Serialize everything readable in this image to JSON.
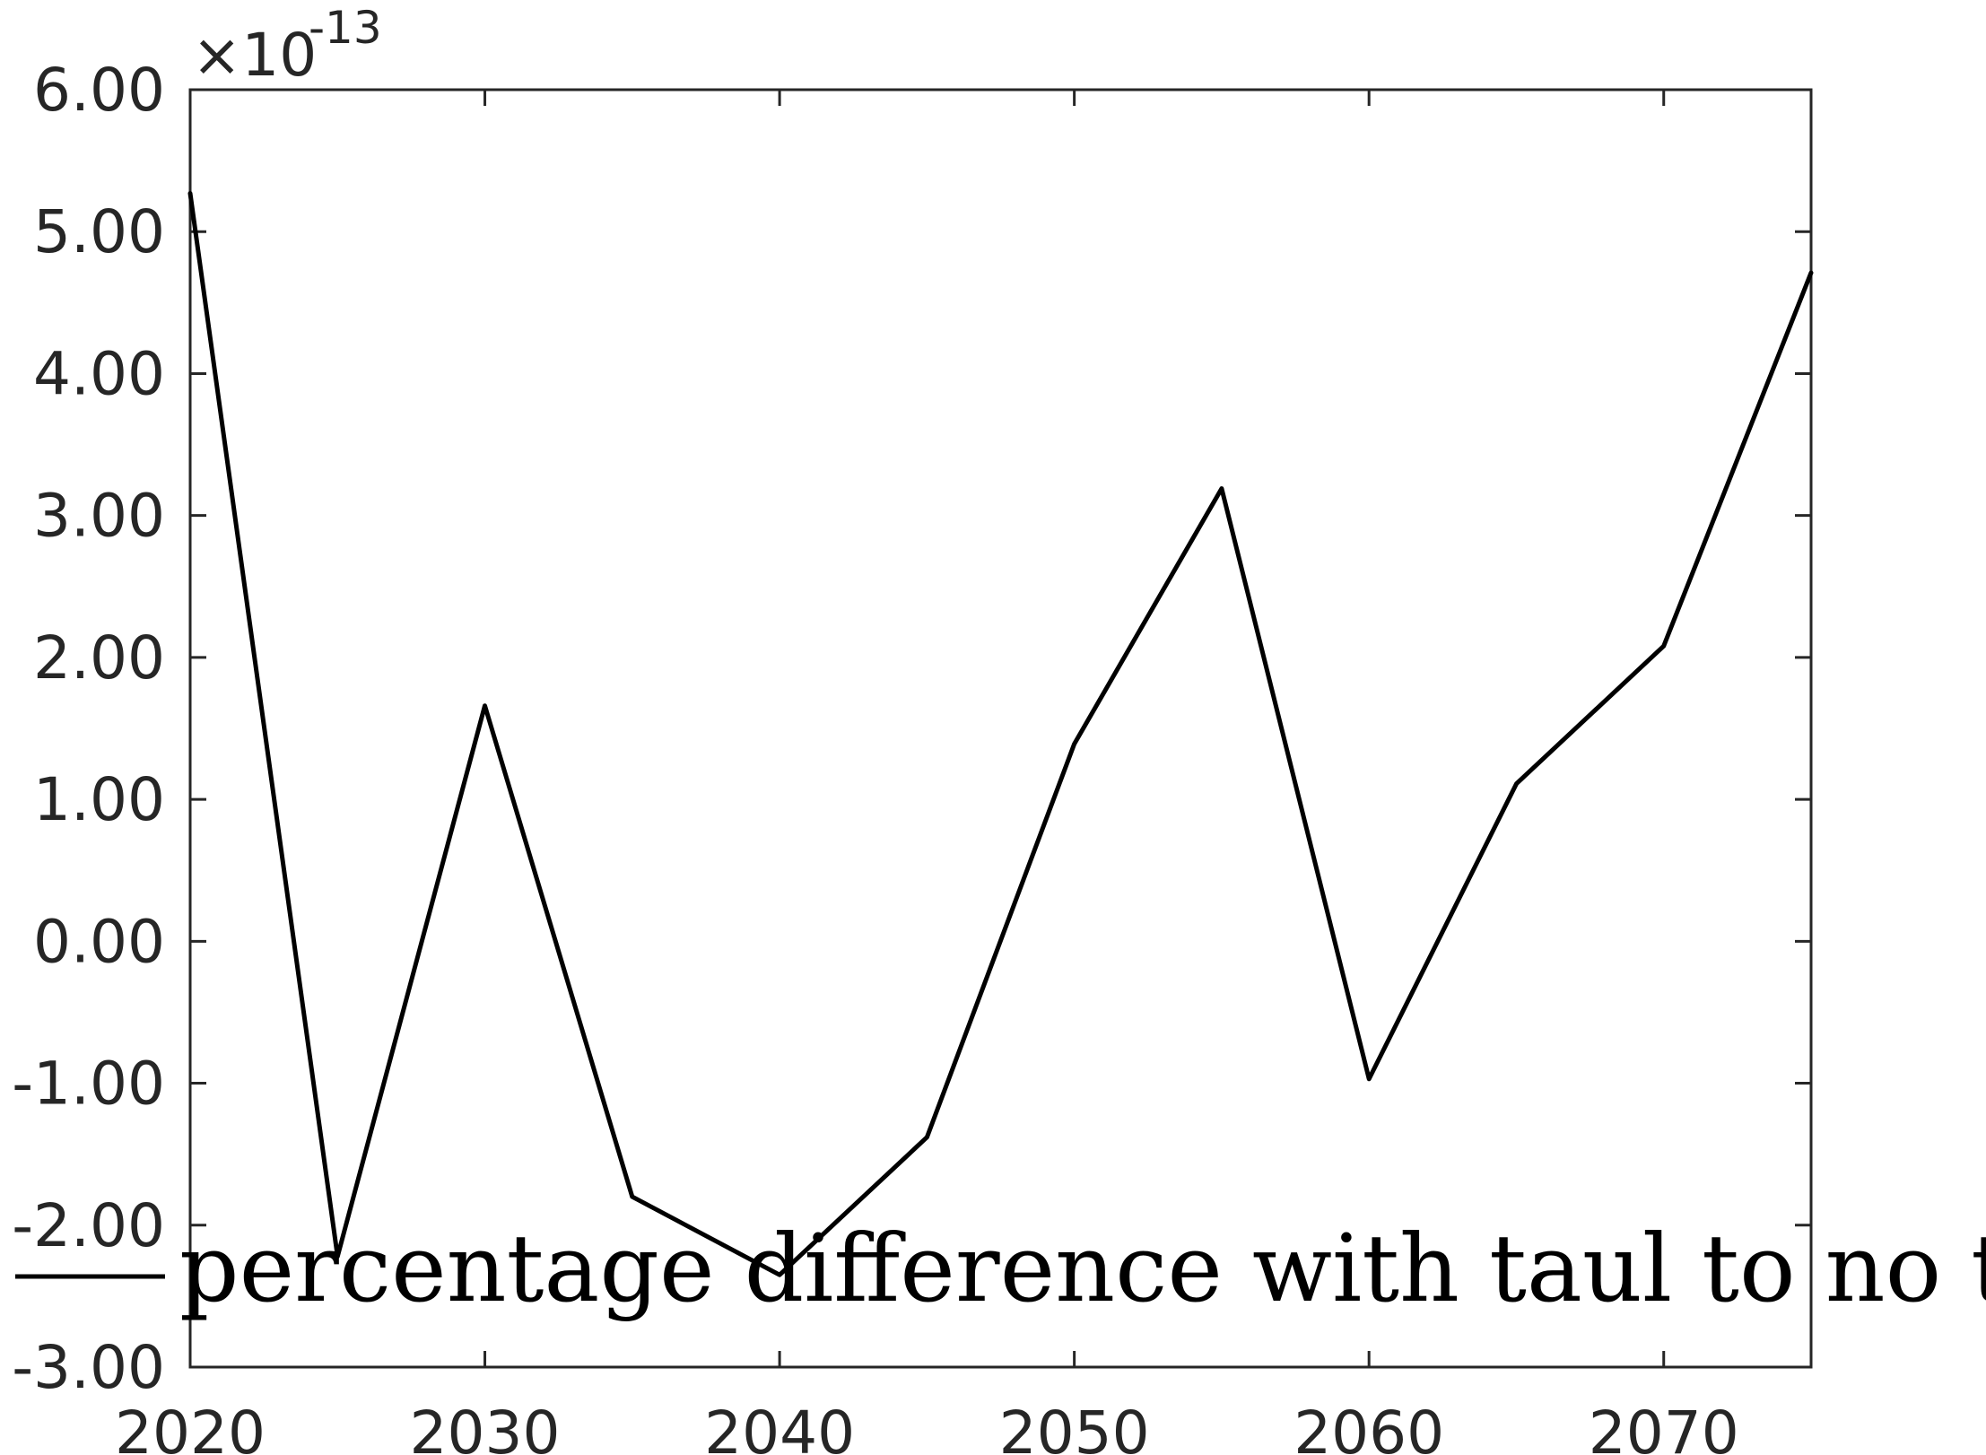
{
  "chart_data": {
    "type": "line",
    "title": "",
    "xlabel": "",
    "ylabel": "",
    "x_ticks": [
      "2020",
      "2030",
      "2040",
      "2050",
      "2060",
      "2070"
    ],
    "y_ticks": [
      "-3.00",
      "-2.00",
      "-1.00",
      "0.00",
      "1.00",
      "2.00",
      "3.00",
      "4.00",
      "5.00",
      "6.00"
    ],
    "y_exponent": {
      "base": "×10",
      "power": "-13"
    },
    "xlim": [
      2020,
      2075
    ],
    "ylim": [
      -3e-13,
      6e-13
    ],
    "grid": false,
    "legend_position": "lower-left",
    "series": [
      {
        "name": "percentage difference with taul to no taul",
        "color": "#000000",
        "x": [
          2020,
          2025,
          2030,
          2035,
          2040,
          2045,
          2050,
          2055,
          2060,
          2065,
          2070,
          2075
        ],
        "values": [
          5.27e-13,
          -2.22e-13,
          1.66e-13,
          -1.8e-13,
          -2.35e-13,
          -1.38e-13,
          1.39e-13,
          3.19e-13,
          -9.7e-14,
          1.11e-13,
          2.08e-13,
          4.71e-13
        ]
      }
    ]
  }
}
